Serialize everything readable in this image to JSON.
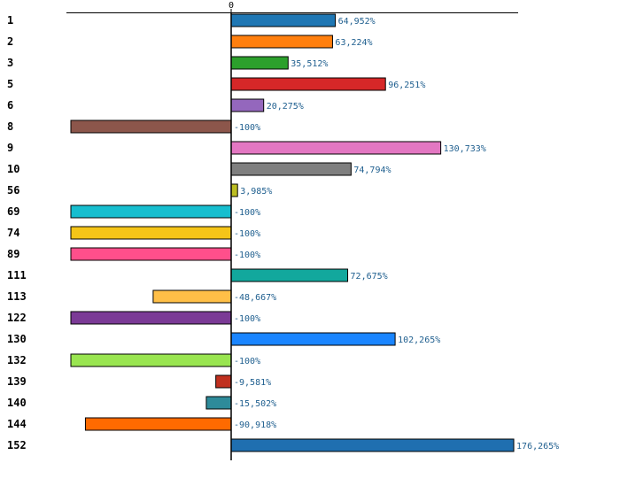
{
  "chart_data": {
    "type": "bar",
    "orientation": "horizontal",
    "title": "",
    "xlabel": "",
    "ylabel": "",
    "xlim": [
      -100,
      176.265
    ],
    "zero_tick_label": "0",
    "categories": [
      "1",
      "2",
      "3",
      "5",
      "6",
      "8",
      "9",
      "10",
      "56",
      "69",
      "74",
      "89",
      "111",
      "113",
      "122",
      "130",
      "132",
      "139",
      "140",
      "144",
      "152"
    ],
    "values": [
      64.952,
      63.224,
      35.512,
      96.251,
      20.275,
      -100,
      130.733,
      74.794,
      3.985,
      -100,
      -100,
      -100,
      72.675,
      -48.667,
      -100,
      102.265,
      -100,
      -9.581,
      -15.502,
      -90.918,
      176.265
    ],
    "value_labels": [
      "64,952%",
      "63,224%",
      "35,512%",
      "96,251%",
      "20,275%",
      "-100%",
      "130,733%",
      "74,794%",
      "3,985%",
      "-100%",
      "-100%",
      "-100%",
      "72,675%",
      "-48,667%",
      "-100%",
      "102,265%",
      "-100%",
      "-9,581%",
      "-15,502%",
      "-90,918%",
      "176,265%"
    ],
    "colors": [
      "#1f77b4",
      "#ff7f0e",
      "#2ca02c",
      "#d62728",
      "#9467bd",
      "#8c564b",
      "#e377c2",
      "#7f7f7f",
      "#bcbd22",
      "#17becf",
      "#f5c518",
      "#ff4f8b",
      "#12a89d",
      "#ffbf47",
      "#7b3a96",
      "#1a85ff",
      "#99e550",
      "#c0301f",
      "#2e8b9a",
      "#ff6a00",
      "#1f6fb0"
    ]
  }
}
